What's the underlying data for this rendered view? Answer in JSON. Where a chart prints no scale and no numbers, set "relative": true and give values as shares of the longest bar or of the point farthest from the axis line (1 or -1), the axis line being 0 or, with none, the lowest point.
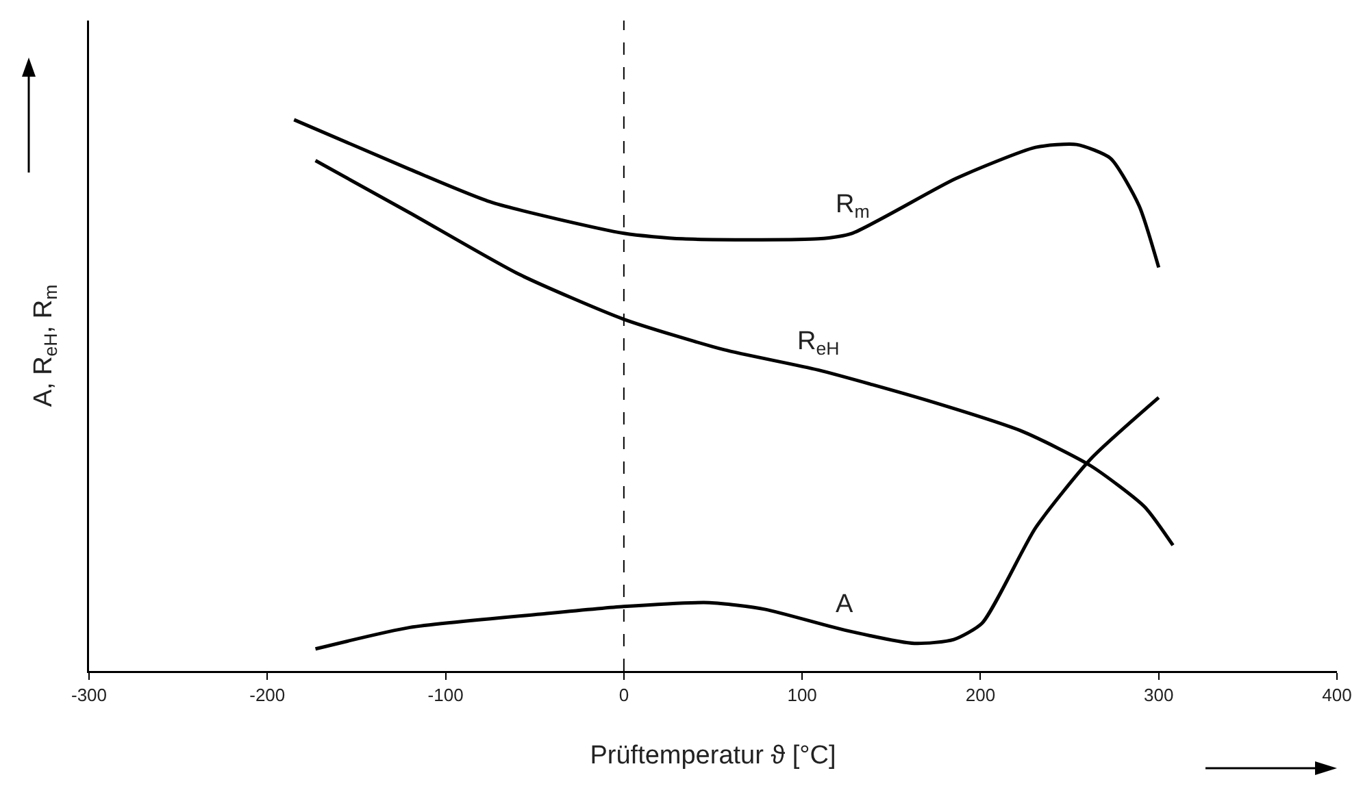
{
  "chart_data": {
    "type": "line",
    "relative": true,
    "xlabel": "Prüftemperatur ϑ [°C]",
    "ylabel": "A, R$_{eH}$, R$_{m}$",
    "xlim": [
      -300,
      400
    ],
    "xticks": [
      -300,
      -200,
      -100,
      0,
      100,
      200,
      300,
      400
    ],
    "grid": false,
    "legend": false,
    "marker": "none",
    "line_style": "solid",
    "ref_lines": [
      {
        "axis": "x",
        "value": 0,
        "line_style": "dashed",
        "color": "#000000"
      }
    ],
    "series": [
      {
        "name": "R$_{m}$",
        "color": "#000000",
        "x": [
          -185,
          -120,
          -74,
          0,
          33,
          109,
          128,
          186,
          231,
          254,
          273,
          289,
          300
        ],
        "values": [
          1.0,
          0.91,
          0.85,
          0.794,
          0.784,
          0.784,
          0.794,
          0.893,
          0.95,
          0.955,
          0.93,
          0.844,
          0.732
        ]
      },
      {
        "name": "R$_{eH}$",
        "color": "#000000",
        "x": [
          -173,
          -120,
          -59,
          0,
          56,
          109,
          170,
          224,
          262,
          292,
          308
        ],
        "values": [
          0.926,
          0.831,
          0.72,
          0.638,
          0.583,
          0.546,
          0.491,
          0.434,
          0.372,
          0.298,
          0.228
        ]
      },
      {
        "name": "A",
        "color": "#000000",
        "x": [
          -173,
          -120,
          -44,
          0,
          48,
          79,
          124,
          163,
          185,
          201,
          231,
          262,
          300
        ],
        "values": [
          0.04,
          0.079,
          0.104,
          0.117,
          0.124,
          0.112,
          0.074,
          0.05,
          0.057,
          0.087,
          0.26,
          0.385,
          0.496
        ]
      }
    ]
  }
}
